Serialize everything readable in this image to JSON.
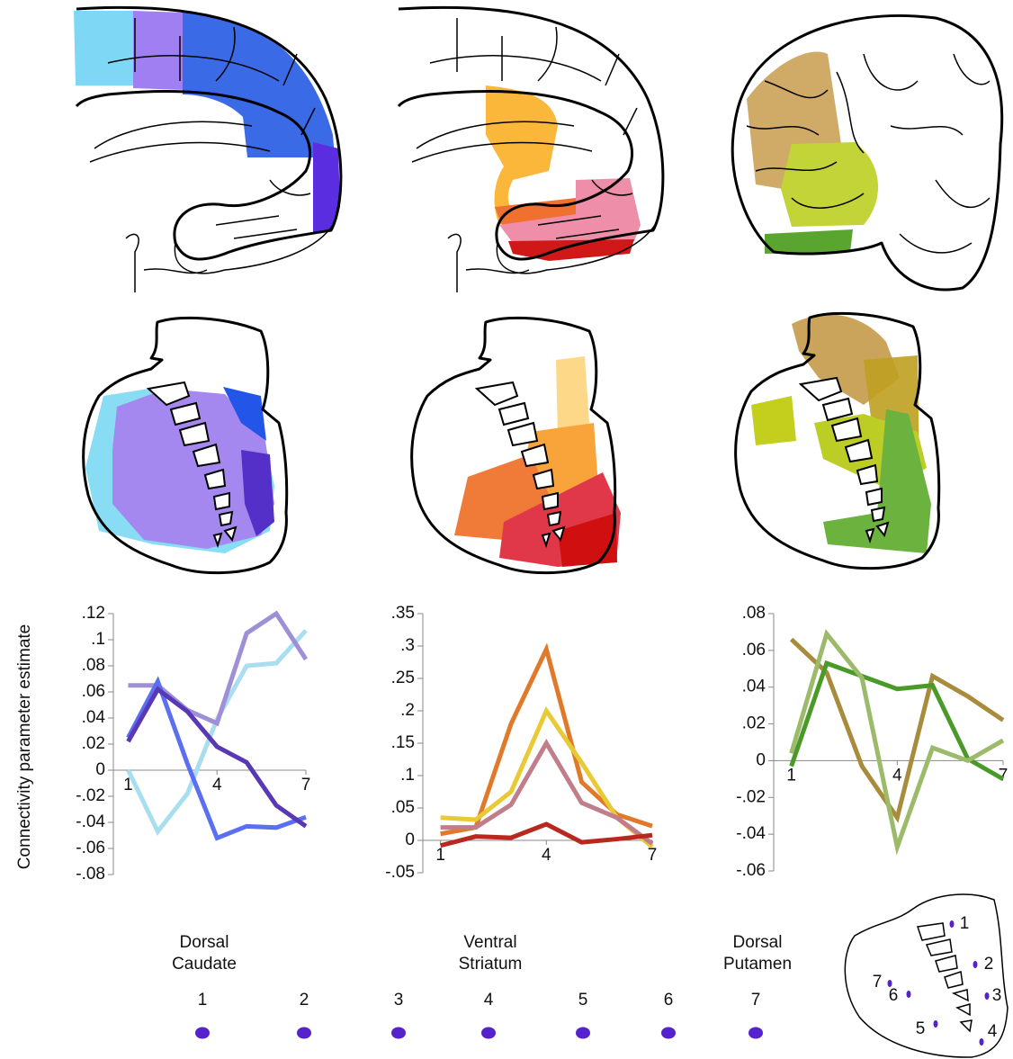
{
  "chart_data": [
    {
      "type": "line",
      "title": "Dorsal Caudate",
      "y_label": "Connectivity parameter estimate",
      "x": [
        1,
        2,
        3,
        4,
        5,
        6,
        7
      ],
      "xlim": [
        0.5,
        7
      ],
      "xticks": [
        1,
        4,
        7
      ],
      "ylim": [
        -0.08,
        0.12
      ],
      "yticks": [
        {
          "value": -0.08,
          "label": "-.08"
        },
        {
          "value": -0.06,
          "label": "-.06"
        },
        {
          "value": -0.04,
          "label": "-.04"
        },
        {
          "value": -0.02,
          "label": "-.02"
        },
        0,
        {
          "value": 0.02,
          "label": ".02"
        },
        {
          "value": 0.04,
          "label": ".04"
        },
        {
          "value": 0.06,
          "label": ".06"
        },
        {
          "value": 0.08,
          "label": ".08"
        },
        {
          "value": 0.1,
          "label": ".1"
        },
        {
          "value": 0.12,
          "label": ".12"
        }
      ],
      "series": [
        {
          "color": "#a9def0",
          "values": [
            0,
            -0.047,
            -0.018,
            0.039,
            0.08,
            0.082,
            0.107
          ]
        },
        {
          "color": "#9f8fd6",
          "values": [
            0.065,
            0.065,
            0.046,
            0.036,
            0.105,
            0.12,
            0.085
          ]
        },
        {
          "color": "#5b70f0",
          "values": [
            0.025,
            0.068,
            0.005,
            -0.052,
            -0.043,
            -0.044,
            -0.036
          ]
        },
        {
          "color": "#5838b4",
          "values": [
            0.022,
            0.062,
            0.045,
            0.018,
            0.006,
            -0.027,
            -0.043
          ]
        }
      ]
    },
    {
      "type": "line",
      "title": "Ventral Striatum",
      "x": [
        1,
        2,
        3,
        4,
        5,
        6,
        7
      ],
      "xlim": [
        0.5,
        7
      ],
      "xticks": [
        1,
        4,
        7
      ],
      "ylim": [
        -0.05,
        0.35
      ],
      "yticks": [
        {
          "value": -0.05,
          "label": "-.05"
        },
        0,
        {
          "value": 0.05,
          "label": ".05"
        },
        {
          "value": 0.1,
          "label": ".1"
        },
        {
          "value": 0.15,
          "label": ".15"
        },
        {
          "value": 0.2,
          "label": ".2"
        },
        {
          "value": 0.25,
          "label": ".25"
        },
        {
          "value": 0.3,
          "label": ".3"
        },
        {
          "value": 0.35,
          "label": ".35"
        }
      ],
      "series": [
        {
          "color": "#e07a2a",
          "values": [
            0.01,
            0.02,
            0.18,
            0.295,
            0.09,
            0.04,
            0.022
          ]
        },
        {
          "color": "#e8c936",
          "values": [
            0.035,
            0.032,
            0.075,
            0.2,
            0.12,
            0.035,
            -0.01
          ]
        },
        {
          "color": "#c27d8a",
          "values": [
            0.02,
            0.02,
            0.055,
            0.15,
            0.058,
            0.035,
            -0.005
          ]
        },
        {
          "color": "#b8281e",
          "values": [
            -0.008,
            0.006,
            0.004,
            0.025,
            -0.003,
            0.002,
            0.008
          ]
        }
      ]
    },
    {
      "type": "line",
      "title": "Dorsal Putamen",
      "x": [
        1,
        2,
        3,
        4,
        5,
        6,
        7
      ],
      "xlim": [
        0.5,
        7
      ],
      "xticks": [
        1,
        4,
        7
      ],
      "ylim": [
        -0.06,
        0.08
      ],
      "yticks": [
        {
          "value": -0.06,
          "label": "-.06"
        },
        {
          "value": -0.04,
          "label": "-.04"
        },
        {
          "value": -0.02,
          "label": "-.02"
        },
        0,
        {
          "value": 0.02,
          "label": ".02"
        },
        {
          "value": 0.04,
          "label": ".04"
        },
        {
          "value": 0.06,
          "label": ".06"
        },
        {
          "value": 0.08,
          "label": ".08"
        }
      ],
      "series": [
        {
          "color": "#a98b3c",
          "values": [
            0.066,
            0.048,
            -0.003,
            -0.031,
            0.046,
            0.035,
            0.022
          ]
        },
        {
          "color": "#4a9a2a",
          "values": [
            -0.003,
            0.053,
            0.046,
            0.039,
            0.041,
            0.001,
            -0.01
          ]
        },
        {
          "color": "#9bba6a",
          "values": [
            0.004,
            0.069,
            0.045,
            -0.047,
            0.007,
            0,
            0.011
          ]
        }
      ]
    }
  ],
  "region_labels": [
    "1",
    "2",
    "3",
    "4",
    "5",
    "6",
    "7"
  ],
  "inset_labels": [
    "1",
    "2",
    "3",
    "4",
    "5",
    "6",
    "7"
  ]
}
